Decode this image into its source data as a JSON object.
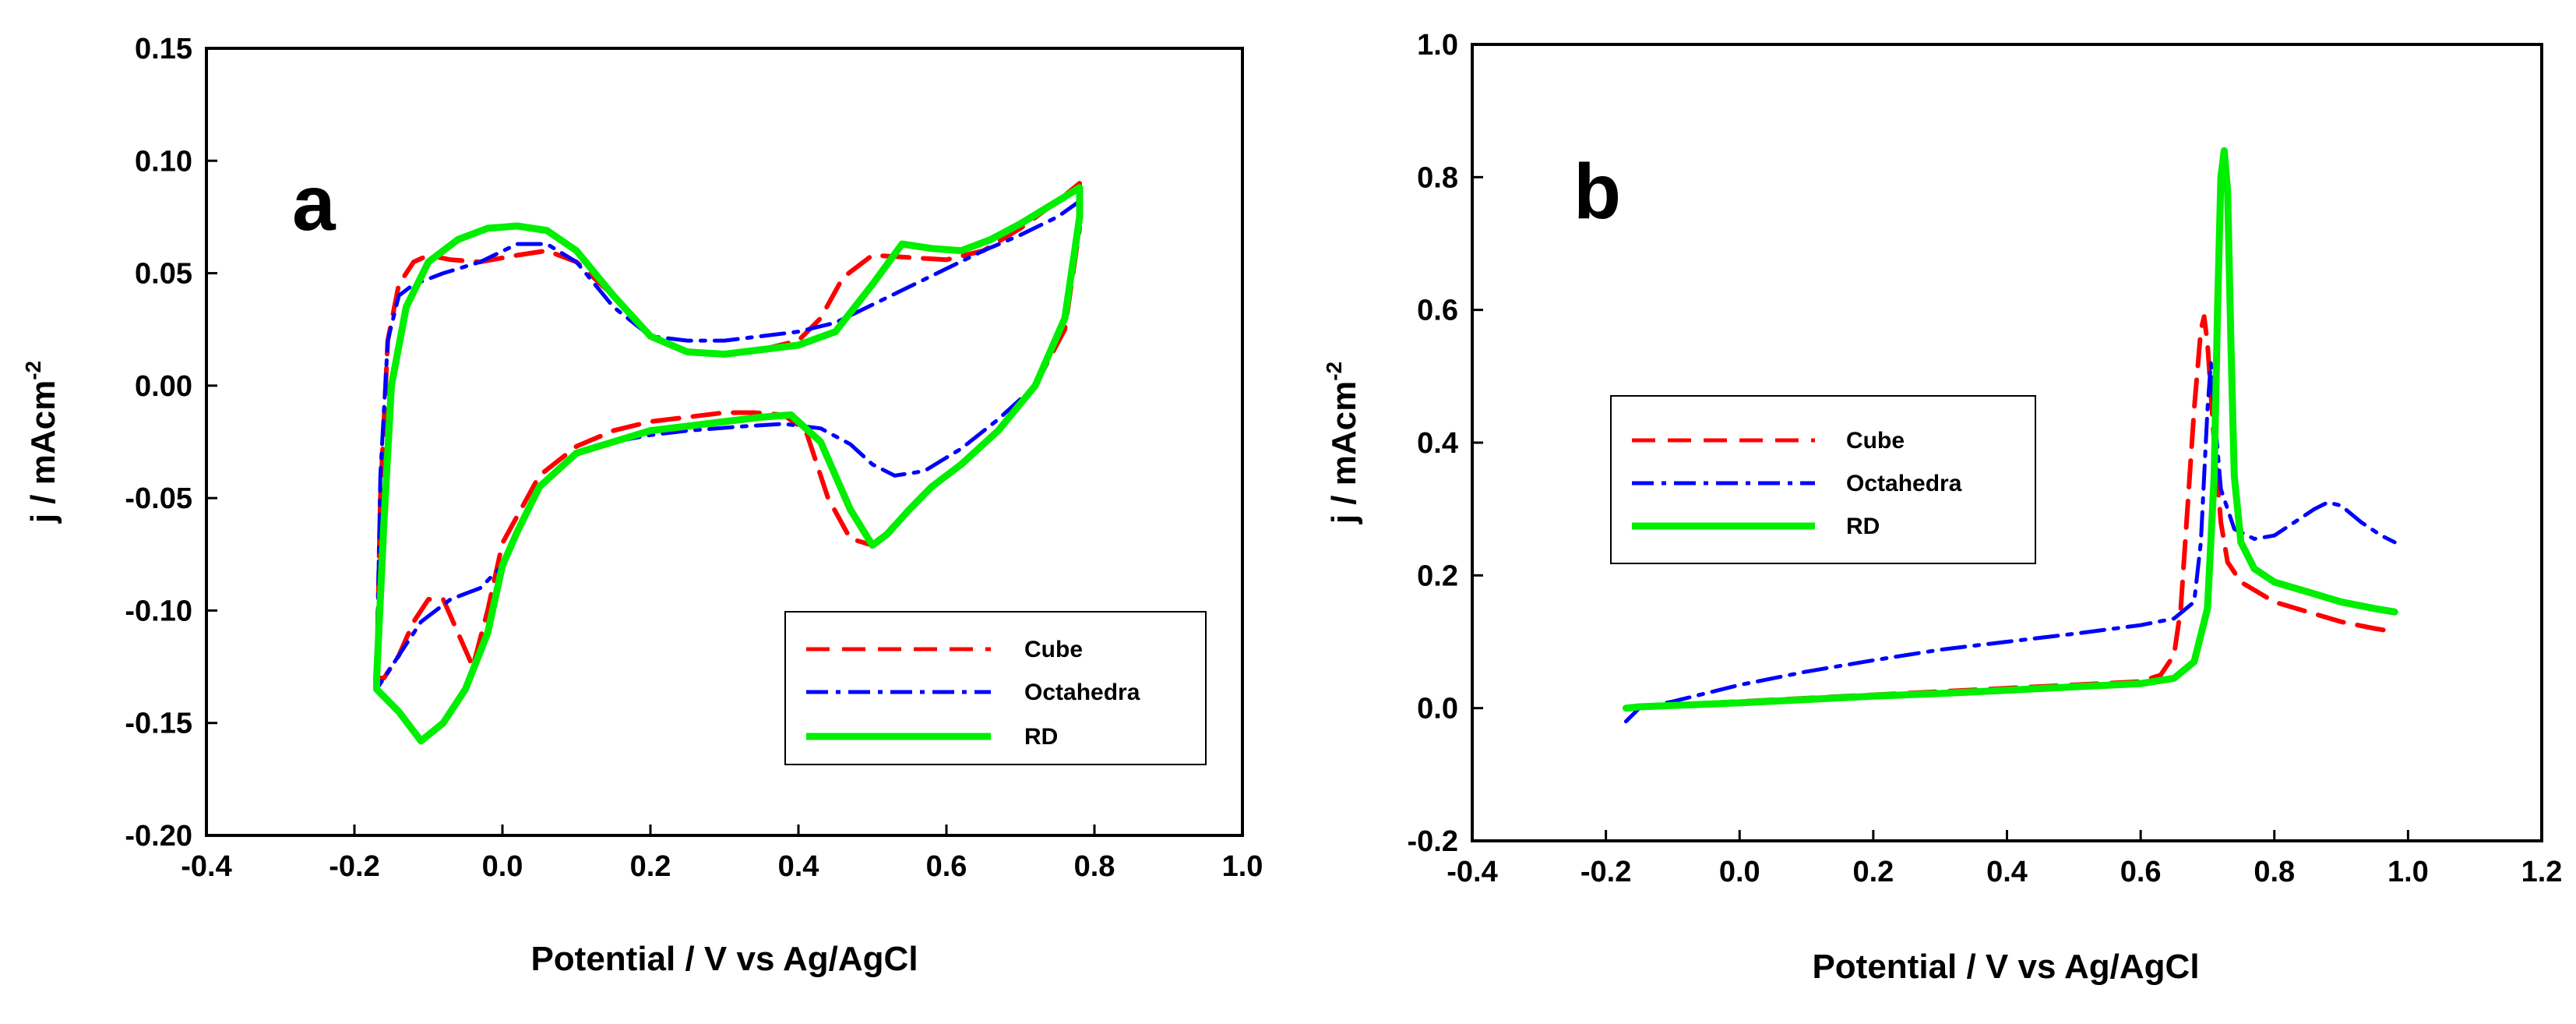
{
  "chart_data": [
    {
      "type": "line",
      "panel_label": "a",
      "xlabel": "Potential / V vs Ag/AgCl",
      "ylabel": "j / mAcm",
      "ylabel_superscript": "-2",
      "xlim": [
        -0.4,
        1.0
      ],
      "ylim": [
        -0.2,
        0.15
      ],
      "xticks": [
        "-0.4",
        "-0.2",
        "0.0",
        "0.2",
        "0.4",
        "0.6",
        "0.8",
        "1.0"
      ],
      "yticks": [
        "-0.20",
        "-0.15",
        "-0.10",
        "-0.05",
        "0.00",
        "0.05",
        "0.10",
        "0.15"
      ],
      "legend_position": "bottom-right",
      "series": [
        {
          "name": "Cube",
          "color": "#ff0000",
          "style": "dashed",
          "x": [
            -0.17,
            -0.165,
            -0.155,
            -0.14,
            -0.12,
            -0.1,
            -0.07,
            -0.03,
            0.02,
            0.06,
            0.1,
            0.15,
            0.2,
            0.25,
            0.3,
            0.35,
            0.4,
            0.43,
            0.46,
            0.5,
            0.55,
            0.6,
            0.65,
            0.7,
            0.75,
            0.78,
            0.78,
            0.76,
            0.72,
            0.67,
            0.62,
            0.58,
            0.55,
            0.52,
            0.5,
            0.47,
            0.44,
            0.41,
            0.38,
            0.34,
            0.3,
            0.25,
            0.2,
            0.15,
            0.1,
            0.05,
            0.0,
            -0.02,
            -0.04,
            -0.06,
            -0.08,
            -0.1,
            -0.12,
            -0.14,
            -0.16,
            -0.17
          ],
          "y": [
            -0.13,
            -0.05,
            0.02,
            0.045,
            0.055,
            0.058,
            0.056,
            0.055,
            0.058,
            0.06,
            0.055,
            0.04,
            0.022,
            0.015,
            0.014,
            0.016,
            0.02,
            0.03,
            0.048,
            0.058,
            0.057,
            0.056,
            0.06,
            0.07,
            0.082,
            0.09,
            0.07,
            0.025,
            0.0,
            -0.02,
            -0.035,
            -0.045,
            -0.055,
            -0.065,
            -0.071,
            -0.068,
            -0.05,
            -0.02,
            -0.013,
            -0.012,
            -0.012,
            -0.014,
            -0.016,
            -0.02,
            -0.027,
            -0.04,
            -0.07,
            -0.1,
            -0.125,
            -0.11,
            -0.095,
            -0.095,
            -0.105,
            -0.12,
            -0.13,
            -0.13
          ]
        },
        {
          "name": "Octahedra",
          "color": "#0000ff",
          "style": "dashdot",
          "x": [
            -0.17,
            -0.165,
            -0.155,
            -0.14,
            -0.12,
            -0.08,
            -0.03,
            0.02,
            0.06,
            0.1,
            0.15,
            0.2,
            0.25,
            0.3,
            0.35,
            0.4,
            0.45,
            0.5,
            0.55,
            0.6,
            0.65,
            0.7,
            0.75,
            0.78,
            0.78,
            0.76,
            0.72,
            0.67,
            0.62,
            0.57,
            0.53,
            0.5,
            0.47,
            0.43,
            0.38,
            0.33,
            0.25,
            0.2,
            0.15,
            0.1,
            0.05,
            0.02,
            0.0,
            -0.03,
            -0.07,
            -0.11,
            -0.14,
            -0.16,
            -0.17
          ],
          "y": [
            -0.13,
            -0.04,
            0.02,
            0.04,
            0.045,
            0.05,
            0.055,
            0.063,
            0.063,
            0.055,
            0.035,
            0.022,
            0.02,
            0.02,
            0.022,
            0.024,
            0.028,
            0.036,
            0.044,
            0.052,
            0.06,
            0.067,
            0.075,
            0.082,
            0.07,
            0.03,
            0.0,
            -0.015,
            -0.028,
            -0.038,
            -0.04,
            -0.035,
            -0.026,
            -0.019,
            -0.017,
            -0.018,
            -0.02,
            -0.022,
            -0.025,
            -0.03,
            -0.045,
            -0.065,
            -0.08,
            -0.09,
            -0.095,
            -0.105,
            -0.12,
            -0.13,
            -0.135
          ]
        },
        {
          "name": "RD",
          "color": "#00ee00",
          "style": "solid",
          "x": [
            -0.17,
            -0.16,
            -0.15,
            -0.13,
            -0.1,
            -0.06,
            -0.02,
            0.02,
            0.06,
            0.1,
            0.15,
            0.2,
            0.25,
            0.3,
            0.35,
            0.4,
            0.45,
            0.5,
            0.54,
            0.58,
            0.62,
            0.66,
            0.7,
            0.74,
            0.78,
            0.78,
            0.76,
            0.72,
            0.67,
            0.62,
            0.58,
            0.55,
            0.52,
            0.5,
            0.47,
            0.43,
            0.39,
            0.35,
            0.3,
            0.25,
            0.2,
            0.15,
            0.1,
            0.05,
            0.02,
            0.0,
            -0.02,
            -0.05,
            -0.08,
            -0.11,
            -0.14,
            -0.17,
            -0.17
          ],
          "y": [
            -0.13,
            -0.06,
            0.0,
            0.035,
            0.055,
            0.065,
            0.07,
            0.071,
            0.069,
            0.06,
            0.04,
            0.022,
            0.015,
            0.014,
            0.016,
            0.018,
            0.024,
            0.045,
            0.063,
            0.061,
            0.06,
            0.065,
            0.072,
            0.08,
            0.088,
            0.075,
            0.03,
            0.0,
            -0.02,
            -0.035,
            -0.045,
            -0.055,
            -0.066,
            -0.071,
            -0.055,
            -0.025,
            -0.013,
            -0.014,
            -0.016,
            -0.018,
            -0.02,
            -0.025,
            -0.03,
            -0.045,
            -0.065,
            -0.08,
            -0.11,
            -0.135,
            -0.15,
            -0.158,
            -0.145,
            -0.135,
            -0.13
          ]
        }
      ]
    },
    {
      "type": "line",
      "panel_label": "b",
      "xlabel": "Potential / V vs Ag/AgCl",
      "ylabel": "j / mAcm",
      "ylabel_superscript": "-2",
      "xlim": [
        -0.4,
        1.2
      ],
      "ylim": [
        -0.2,
        1.0
      ],
      "xticks": [
        "-0.4",
        "-0.2",
        "0.0",
        "0.2",
        "0.4",
        "0.6",
        "0.8",
        "1.0",
        "1.2"
      ],
      "yticks": [
        "-0.2",
        "0.0",
        "0.2",
        "0.4",
        "0.6",
        "0.8",
        "1.0"
      ],
      "legend_position": "center-left",
      "series": [
        {
          "name": "Cube",
          "color": "#ff0000",
          "style": "dashed",
          "x": [
            -0.17,
            -0.15,
            -0.1,
            0.0,
            0.1,
            0.2,
            0.3,
            0.4,
            0.5,
            0.6,
            0.63,
            0.65,
            0.66,
            0.67,
            0.68,
            0.69,
            0.695,
            0.7,
            0.71,
            0.72,
            0.73,
            0.75,
            0.8,
            0.85,
            0.9,
            0.95,
            0.98
          ],
          "y": [
            0.0,
            0.002,
            0.005,
            0.01,
            0.015,
            0.02,
            0.025,
            0.03,
            0.035,
            0.04,
            0.05,
            0.08,
            0.15,
            0.3,
            0.45,
            0.57,
            0.59,
            0.55,
            0.4,
            0.28,
            0.22,
            0.19,
            0.16,
            0.145,
            0.13,
            0.12,
            0.115
          ]
        },
        {
          "name": "Octahedra",
          "color": "#0000ff",
          "style": "dashdot",
          "x": [
            -0.17,
            -0.15,
            -0.1,
            0.0,
            0.1,
            0.2,
            0.3,
            0.4,
            0.5,
            0.6,
            0.65,
            0.68,
            0.69,
            0.7,
            0.705,
            0.71,
            0.72,
            0.74,
            0.77,
            0.8,
            0.83,
            0.86,
            0.88,
            0.9,
            0.93,
            0.96,
            0.98
          ],
          "y": [
            -0.02,
            0.0,
            0.01,
            0.035,
            0.055,
            0.072,
            0.088,
            0.1,
            0.112,
            0.125,
            0.135,
            0.16,
            0.25,
            0.45,
            0.52,
            0.45,
            0.33,
            0.27,
            0.255,
            0.26,
            0.28,
            0.3,
            0.31,
            0.305,
            0.28,
            0.26,
            0.25
          ]
        },
        {
          "name": "RD",
          "color": "#00ee00",
          "style": "solid",
          "x": [
            -0.17,
            -0.15,
            -0.1,
            0.0,
            0.1,
            0.2,
            0.3,
            0.4,
            0.5,
            0.6,
            0.65,
            0.68,
            0.7,
            0.71,
            0.715,
            0.72,
            0.725,
            0.73,
            0.735,
            0.74,
            0.75,
            0.77,
            0.8,
            0.85,
            0.9,
            0.95,
            0.98
          ],
          "y": [
            0.0,
            0.002,
            0.004,
            0.008,
            0.013,
            0.018,
            0.022,
            0.027,
            0.032,
            0.037,
            0.045,
            0.07,
            0.15,
            0.35,
            0.6,
            0.8,
            0.84,
            0.78,
            0.55,
            0.35,
            0.25,
            0.21,
            0.19,
            0.175,
            0.16,
            0.15,
            0.145
          ]
        }
      ]
    }
  ]
}
